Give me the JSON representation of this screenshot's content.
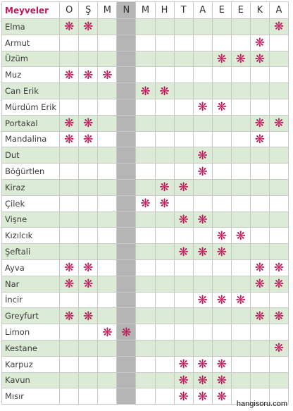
{
  "table": {
    "header_label": "Meyveler",
    "months": [
      "O",
      "Ş",
      "M",
      "N",
      "M",
      "H",
      "T",
      "A",
      "E",
      "E",
      "K",
      "A"
    ],
    "gray_month_index": 3,
    "mark_symbol": "❋",
    "rows": [
      {
        "name": "Elma",
        "months": [
          1,
          2,
          12
        ]
      },
      {
        "name": "Armut",
        "months": [
          11
        ]
      },
      {
        "name": "Üzüm",
        "months": [
          9,
          10,
          11
        ]
      },
      {
        "name": "Muz",
        "months": [
          1,
          2,
          3
        ]
      },
      {
        "name": "Can Erik",
        "months": [
          5,
          6
        ]
      },
      {
        "name": "Mürdüm Erik",
        "months": [
          8,
          9
        ]
      },
      {
        "name": "Portakal",
        "months": [
          1,
          2,
          11,
          12
        ]
      },
      {
        "name": "Mandalina",
        "months": [
          1,
          2,
          11
        ]
      },
      {
        "name": "Dut",
        "months": [
          8
        ]
      },
      {
        "name": "Böğürtlen",
        "months": [
          8
        ]
      },
      {
        "name": "Kiraz",
        "months": [
          6,
          7
        ]
      },
      {
        "name": "Çilek",
        "months": [
          5,
          6
        ]
      },
      {
        "name": "Vişne",
        "months": [
          7,
          8
        ]
      },
      {
        "name": "Kızılcık",
        "months": [
          9,
          10
        ]
      },
      {
        "name": "Şeftali",
        "months": [
          7,
          8,
          9
        ]
      },
      {
        "name": "Ayva",
        "months": [
          1,
          2,
          11,
          12
        ]
      },
      {
        "name": "Nar",
        "months": [
          1,
          2,
          11,
          12
        ]
      },
      {
        "name": "İncir",
        "months": [
          8,
          9,
          10
        ]
      },
      {
        "name": "Greyfurt",
        "months": [
          1,
          2,
          11,
          12
        ]
      },
      {
        "name": "Limon",
        "months": [
          3,
          4
        ]
      },
      {
        "name": "Kestane",
        "months": [
          12
        ]
      },
      {
        "name": "Karpuz",
        "months": [
          7,
          8,
          9
        ]
      },
      {
        "name": "Kavun",
        "months": [
          7,
          8,
          9
        ]
      },
      {
        "name": "Mısır",
        "months": [
          7,
          8,
          9
        ]
      }
    ]
  },
  "colors": {
    "header_accent": "#c2185b",
    "mark": "#c2185b",
    "row_shade": "#dcebd5",
    "gray_column": "#b5b5b5",
    "grid": "#c9c9c9"
  },
  "watermark": "hangisoru.com"
}
